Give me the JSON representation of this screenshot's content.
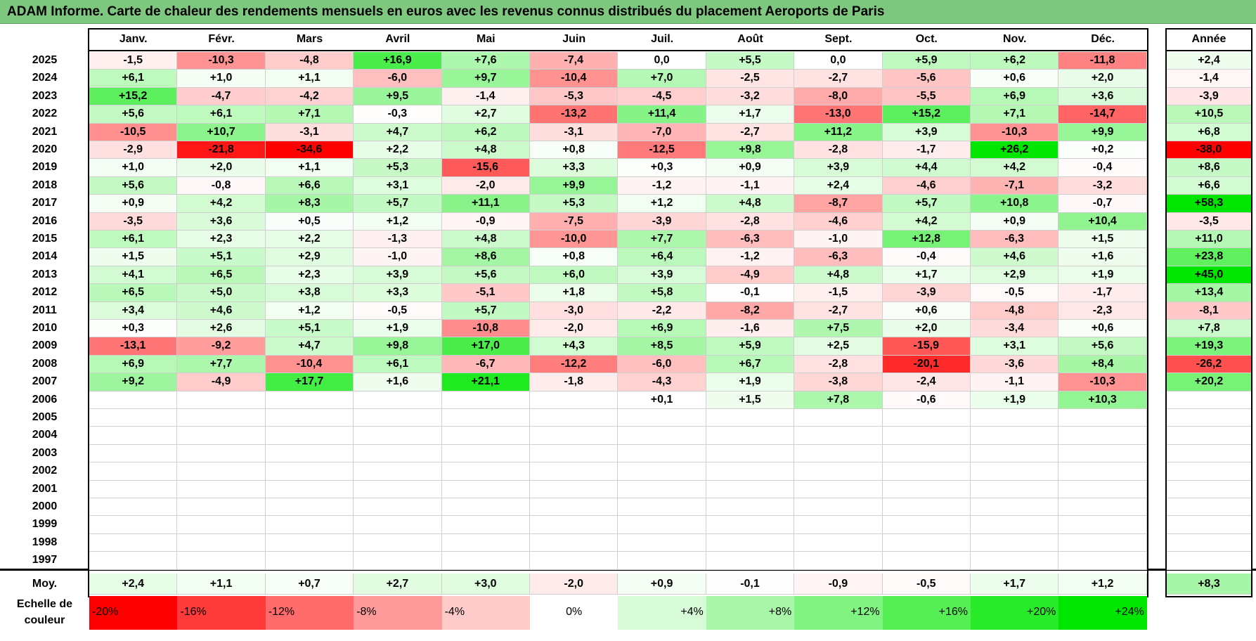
{
  "title": "ADAM Informe. Carte de chaleur des rendements mensuels en euros avec les revenus connus distribués du placement Aeroports de Paris",
  "chart_data": {
    "type": "heatmap",
    "title": "ADAM Informe. Carte de chaleur des rendements mensuels en euros avec les revenus connus distribués du placement Aeroports de Paris",
    "months": [
      "Janv.",
      "Févr.",
      "Mars",
      "Avril",
      "Mai",
      "Juin",
      "Juil.",
      "Août",
      "Sept.",
      "Oct.",
      "Nov.",
      "Déc."
    ],
    "year_header": "Année",
    "rows": [
      {
        "year": "2025",
        "values": [
          "-1,5",
          "-10,3",
          "-4,8",
          "+16,9",
          "+7,6",
          "-7,4",
          "0,0",
          "+5,5",
          "0,0",
          "+5,9",
          "+6,2",
          "-11,8"
        ],
        "annual": "+2,4"
      },
      {
        "year": "2024",
        "values": [
          "+6,1",
          "+1,0",
          "+1,1",
          "-6,0",
          "+9,7",
          "-10,4",
          "+7,0",
          "-2,5",
          "-2,7",
          "-5,6",
          "+0,6",
          "+2,0"
        ],
        "annual": "-1,4"
      },
      {
        "year": "2023",
        "values": [
          "+15,2",
          "-4,7",
          "-4,2",
          "+9,5",
          "-1,4",
          "-5,3",
          "-4,5",
          "-3,2",
          "-8,0",
          "-5,5",
          "+6,9",
          "+3,6"
        ],
        "annual": "-3,9"
      },
      {
        "year": "2022",
        "values": [
          "+5,6",
          "+6,1",
          "+7,1",
          "-0,3",
          "+2,7",
          "-13,2",
          "+11,4",
          "+1,7",
          "-13,0",
          "+15,2",
          "+7,1",
          "-14,7"
        ],
        "annual": "+10,5"
      },
      {
        "year": "2021",
        "values": [
          "-10,5",
          "+10,7",
          "-3,1",
          "+4,7",
          "+6,2",
          "-3,1",
          "-7,0",
          "-2,7",
          "+11,2",
          "+3,9",
          "-10,3",
          "+9,9"
        ],
        "annual": "+6,8"
      },
      {
        "year": "2020",
        "values": [
          "-2,9",
          "-21,8",
          "-34,6",
          "+2,2",
          "+4,8",
          "+0,8",
          "-12,5",
          "+9,8",
          "-2,8",
          "-1,7",
          "+26,2",
          "+0,2"
        ],
        "annual": "-38,0"
      },
      {
        "year": "2019",
        "values": [
          "+1,0",
          "+2,0",
          "+1,1",
          "+5,3",
          "-15,6",
          "+3,3",
          "+0,3",
          "+0,9",
          "+3,9",
          "+4,4",
          "+4,2",
          "-0,4"
        ],
        "annual": "+8,6"
      },
      {
        "year": "2018",
        "values": [
          "+5,6",
          "-0,8",
          "+6,6",
          "+3,1",
          "-2,0",
          "+9,9",
          "-1,2",
          "-1,1",
          "+2,4",
          "-4,6",
          "-7,1",
          "-3,2"
        ],
        "annual": "+6,6"
      },
      {
        "year": "2017",
        "values": [
          "+0,9",
          "+4,2",
          "+8,3",
          "+5,7",
          "+11,1",
          "+5,3",
          "+1,2",
          "+4,8",
          "-8,7",
          "+5,7",
          "+10,8",
          "-0,7"
        ],
        "annual": "+58,3"
      },
      {
        "year": "2016",
        "values": [
          "-3,5",
          "+3,6",
          "+0,5",
          "+1,2",
          "-0,9",
          "-7,5",
          "-3,9",
          "-2,8",
          "-4,6",
          "+4,2",
          "+0,9",
          "+10,4"
        ],
        "annual": "-3,5"
      },
      {
        "year": "2015",
        "values": [
          "+6,1",
          "+2,3",
          "+2,2",
          "-1,3",
          "+4,8",
          "-10,0",
          "+7,7",
          "-6,3",
          "-1,0",
          "+12,8",
          "-6,3",
          "+1,5"
        ],
        "annual": "+11,0"
      },
      {
        "year": "2014",
        "values": [
          "+1,5",
          "+5,1",
          "+2,9",
          "-1,0",
          "+8,6",
          "+0,8",
          "+6,4",
          "-1,2",
          "-6,3",
          "-0,4",
          "+4,6",
          "+1,6"
        ],
        "annual": "+23,8"
      },
      {
        "year": "2013",
        "values": [
          "+4,1",
          "+6,5",
          "+2,3",
          "+3,9",
          "+5,6",
          "+6,0",
          "+3,9",
          "-4,9",
          "+4,8",
          "+1,7",
          "+2,9",
          "+1,9"
        ],
        "annual": "+45,0"
      },
      {
        "year": "2012",
        "values": [
          "+6,5",
          "+5,0",
          "+3,8",
          "+3,3",
          "-5,1",
          "+1,8",
          "+5,8",
          "-0,1",
          "-1,5",
          "-3,9",
          "-0,5",
          "-1,7"
        ],
        "annual": "+13,4"
      },
      {
        "year": "2011",
        "values": [
          "+3,4",
          "+4,6",
          "+1,2",
          "-0,5",
          "+5,7",
          "-3,0",
          "-2,2",
          "-8,2",
          "-2,7",
          "+0,6",
          "-4,8",
          "-2,3"
        ],
        "annual": "-8,1"
      },
      {
        "year": "2010",
        "values": [
          "+0,3",
          "+2,6",
          "+5,1",
          "+1,9",
          "-10,8",
          "-2,0",
          "+6,9",
          "-1,6",
          "+7,5",
          "+2,0",
          "-3,4",
          "+0,6"
        ],
        "annual": "+7,8"
      },
      {
        "year": "2009",
        "values": [
          "-13,1",
          "-9,2",
          "+4,7",
          "+9,8",
          "+17,0",
          "+4,3",
          "+8,5",
          "+5,9",
          "+2,5",
          "-15,9",
          "+3,1",
          "+5,6"
        ],
        "annual": "+19,3"
      },
      {
        "year": "2008",
        "values": [
          "+6,9",
          "+7,7",
          "-10,4",
          "+6,1",
          "-6,7",
          "-12,2",
          "-6,0",
          "+6,7",
          "-2,8",
          "-20,1",
          "-3,6",
          "+8,4"
        ],
        "annual": "-26,2"
      },
      {
        "year": "2007",
        "values": [
          "+9,2",
          "-4,9",
          "+17,7",
          "+1,6",
          "+21,1",
          "-1,8",
          "-4,3",
          "+1,9",
          "-3,8",
          "-2,4",
          "-1,1",
          "-10,3"
        ],
        "annual": "+20,2"
      },
      {
        "year": "2006",
        "values": [
          "",
          "",
          "",
          "",
          "",
          "",
          "+0,1",
          "+1,5",
          "+7,8",
          "-0,6",
          "+1,9",
          "+10,3"
        ],
        "annual": ""
      },
      {
        "year": "2005",
        "values": [
          "",
          "",
          "",
          "",
          "",
          "",
          "",
          "",
          "",
          "",
          "",
          ""
        ],
        "annual": ""
      },
      {
        "year": "2004",
        "values": [
          "",
          "",
          "",
          "",
          "",
          "",
          "",
          "",
          "",
          "",
          "",
          ""
        ],
        "annual": ""
      },
      {
        "year": "2003",
        "values": [
          "",
          "",
          "",
          "",
          "",
          "",
          "",
          "",
          "",
          "",
          "",
          ""
        ],
        "annual": ""
      },
      {
        "year": "2002",
        "values": [
          "",
          "",
          "",
          "",
          "",
          "",
          "",
          "",
          "",
          "",
          "",
          ""
        ],
        "annual": ""
      },
      {
        "year": "2001",
        "values": [
          "",
          "",
          "",
          "",
          "",
          "",
          "",
          "",
          "",
          "",
          "",
          ""
        ],
        "annual": ""
      },
      {
        "year": "2000",
        "values": [
          "",
          "",
          "",
          "",
          "",
          "",
          "",
          "",
          "",
          "",
          "",
          ""
        ],
        "annual": ""
      },
      {
        "year": "1999",
        "values": [
          "",
          "",
          "",
          "",
          "",
          "",
          "",
          "",
          "",
          "",
          "",
          ""
        ],
        "annual": ""
      },
      {
        "year": "1998",
        "values": [
          "",
          "",
          "",
          "",
          "",
          "",
          "",
          "",
          "",
          "",
          "",
          ""
        ],
        "annual": ""
      },
      {
        "year": "1997",
        "values": [
          "",
          "",
          "",
          "",
          "",
          "",
          "",
          "",
          "",
          "",
          "",
          ""
        ],
        "annual": ""
      }
    ],
    "average": {
      "label": "Moy.",
      "values": [
        "+2,4",
        "+1,1",
        "+0,7",
        "+2,7",
        "+3,0",
        "-2,0",
        "+0,9",
        "-0,1",
        "-0,9",
        "-0,5",
        "+1,7",
        "+1,2"
      ],
      "annual": "+8,3"
    },
    "color_scale": {
      "label": "Echelle de couleur",
      "steps": [
        {
          "label": "-20%",
          "color": "#ff0000"
        },
        {
          "label": "-16%",
          "color": "#ff3a3a"
        },
        {
          "label": "-12%",
          "color": "#ff6a6a"
        },
        {
          "label": "-8%",
          "color": "#ff9a9a"
        },
        {
          "label": "-4%",
          "color": "#ffcaca"
        },
        {
          "label": "0%",
          "color": "#ffffff"
        },
        {
          "label": "+4%",
          "color": "#d6fbd6"
        },
        {
          "label": "+8%",
          "color": "#aaf7aa"
        },
        {
          "label": "+12%",
          "color": "#80f380"
        },
        {
          "label": "+16%",
          "color": "#55ef55"
        },
        {
          "label": "+20%",
          "color": "#2aeb2a"
        },
        {
          "label": "+24%",
          "color": "#00e600"
        }
      ]
    },
    "colors": {
      "title_bar": "#7ec77e",
      "negative_max": "#ff0000",
      "positive_max": "#00e600"
    }
  }
}
